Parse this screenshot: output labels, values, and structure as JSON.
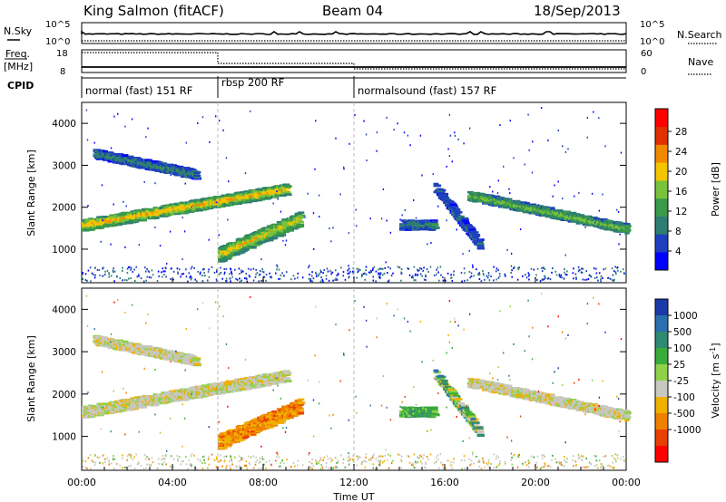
{
  "header": {
    "station": "King Salmon (fitACF)",
    "beam": "Beam 04",
    "date": "18/Sep/2013"
  },
  "noise_panel": {
    "left_label": "N.Sky",
    "right_label": "N.Search",
    "left_ticks": [
      "10^5",
      "10^0"
    ],
    "right_ticks": [
      "10^5",
      "10^0"
    ]
  },
  "freq_panel": {
    "left_label_top": "Freq.",
    "left_label_bottom": "[MHz]",
    "right_label": "Nave",
    "left_ticks": [
      "18",
      "8"
    ],
    "right_ticks": [
      "60",
      "0"
    ]
  },
  "cpid_panel": {
    "label": "CPID",
    "segments": [
      {
        "label": "normal (fast) 151 RF",
        "start_hour": 0,
        "end_hour": 6
      },
      {
        "label": "rbsp 200 RF",
        "start_hour": 6,
        "end_hour": 12
      },
      {
        "label": "normalsound (fast) 157 RF",
        "start_hour": 12,
        "end_hour": 24
      }
    ]
  },
  "x_axis": {
    "label": "Time UT",
    "ticks": [
      "00:00",
      "04:00",
      "08:00",
      "12:00",
      "16:00",
      "20:00",
      "00:00"
    ],
    "tick_hours": [
      0,
      4,
      8,
      12,
      16,
      20,
      24
    ]
  },
  "y_axis": {
    "label": "Slant Range [km]",
    "ticks": [
      "1000",
      "2000",
      "3000",
      "4000"
    ],
    "tick_values": [
      1000,
      2000,
      3000,
      4000
    ],
    "range": [
      200,
      4500
    ]
  },
  "power_colorbar": {
    "label": "Power [dB]",
    "ticks": [
      "28",
      "24",
      "20",
      "16",
      "12",
      "8",
      "4"
    ],
    "colors": [
      "#0000ff",
      "#1e3fbf",
      "#2e7d74",
      "#3a9a4a",
      "#78c23c",
      "#f4c400",
      "#f08a00",
      "#e03000",
      "#ff0000"
    ]
  },
  "velocity_colorbar": {
    "label_main": "Velocity [m s",
    "label_sup": "-1",
    "label_end": "]",
    "ticks": [
      "1000",
      "500",
      "100",
      "25",
      "-25",
      "-100",
      "-500",
      "-1000"
    ],
    "colors": [
      "#1a3aa8",
      "#2a6fb0",
      "#2e8a73",
      "#3aab3a",
      "#8ed24a",
      "#c8c8c0",
      "#f0b000",
      "#f08000",
      "#e84000",
      "#ff0000"
    ]
  },
  "chart_data": {
    "type": "heatmap",
    "x": "time (hours UT)",
    "y": "slant range (km)",
    "panels": [
      "Power [dB]",
      "Velocity [m s-1]"
    ],
    "features": [
      {
        "name": "main band",
        "start_hour": 0.0,
        "end_hour": 9.0,
        "start_range_km": 1600,
        "end_range_km": 2450,
        "power_db": 20,
        "velocity": "~0"
      },
      {
        "name": "lower band",
        "start_hour": 6.0,
        "end_hour": 9.6,
        "start_range_km": 900,
        "end_range_km": 1750,
        "power_db": 18,
        "velocity": "-100 to -500"
      },
      {
        "name": "upper band",
        "start_hour": 0.5,
        "end_hour": 5.0,
        "start_range_km": 3300,
        "end_range_km": 2800,
        "power_db": 8,
        "velocity": "~0"
      },
      {
        "name": "evening band",
        "start_hour": 17.0,
        "end_hour": 24.0,
        "start_range_km": 2300,
        "end_range_km": 1500,
        "power_db": 14,
        "velocity": "~0"
      },
      {
        "name": "afternoon patch",
        "start_hour": 14.0,
        "end_hour": 15.5,
        "range_km": 1600,
        "power_db": 8,
        "velocity": "+25 to +100"
      },
      {
        "name": "diagonal stripe",
        "start_hour": 15.5,
        "end_hour": 17.5,
        "start_range_km": 2500,
        "end_range_km": 1100,
        "power_db": 6,
        "velocity": "mixed"
      }
    ]
  }
}
